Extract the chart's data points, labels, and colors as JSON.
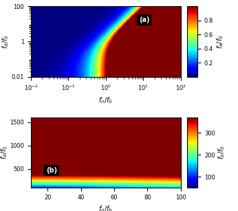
{
  "subplot_a": {
    "fn_range": [
      -2,
      2
    ],
    "fd_range": [
      -2,
      2
    ],
    "xlabel": "$f_n/f_0$",
    "ylabel": "$f_d/f_0$",
    "clabel": "$f_a/f_0$",
    "clim": [
      0.0,
      1.0
    ],
    "cticks": [
      0.2,
      0.4,
      0.6,
      0.8
    ],
    "label": "(a)"
  },
  "subplot_b": {
    "fn_range": [
      10,
      100
    ],
    "fd_range": [
      100,
      1600
    ],
    "xlabel": "$f_n/f_b$",
    "ylabel": "$f_d/f_0$",
    "clabel": "$f_b/f_0$",
    "clim": [
      50,
      370
    ],
    "cticks": [
      100,
      200,
      300
    ],
    "label": "(b)"
  },
  "colormap": "jet",
  "figure_bg": "white"
}
